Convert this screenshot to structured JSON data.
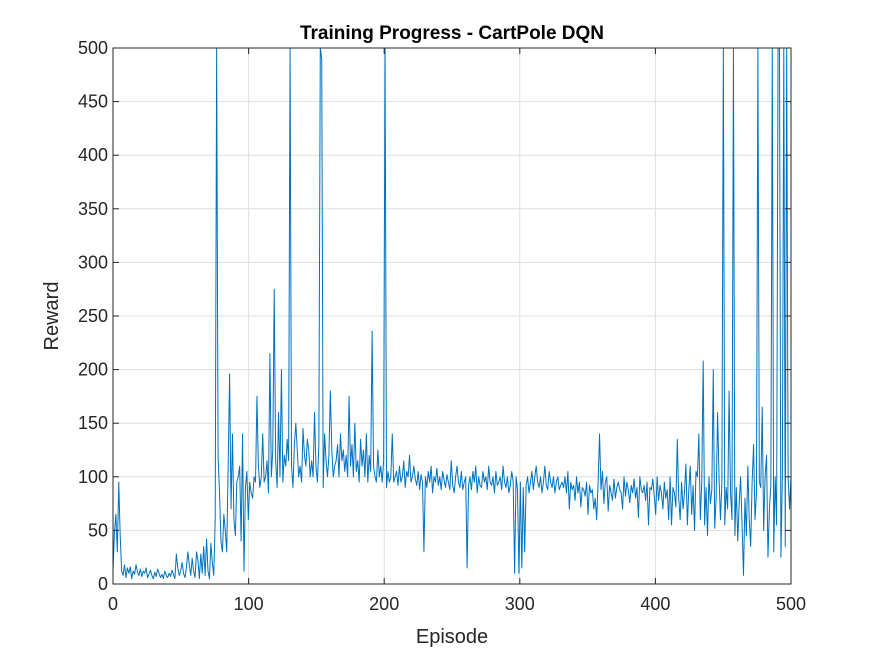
{
  "chart_data": {
    "type": "line",
    "title": "Training Progress - CartPole DQN",
    "xlabel": "Episode",
    "ylabel": "Reward",
    "xlim": [
      0,
      500
    ],
    "ylim": [
      0,
      500
    ],
    "xticks": [
      0,
      100,
      200,
      300,
      400,
      500
    ],
    "yticks": [
      0,
      50,
      100,
      150,
      200,
      250,
      300,
      350,
      400,
      450,
      500
    ],
    "grid": true,
    "legend": null,
    "series": [
      {
        "name": "Reward",
        "color": "#0072BD",
        "y": [
          12,
          48,
          65,
          30,
          95,
          45,
          12,
          8,
          18,
          6,
          15,
          10,
          16,
          5,
          12,
          9,
          18,
          11,
          8,
          14,
          7,
          12,
          10,
          15,
          6,
          9,
          13,
          8,
          5,
          11,
          7,
          14,
          10,
          6,
          9,
          5,
          12,
          8,
          6,
          10,
          7,
          13,
          9,
          5,
          28,
          15,
          8,
          12,
          20,
          10,
          6,
          15,
          30,
          18,
          8,
          24,
          12,
          6,
          30,
          22,
          5,
          28,
          10,
          35,
          8,
          42,
          12,
          5,
          38,
          20,
          8,
          60,
          500,
          120,
          85,
          40,
          30,
          65,
          50,
          30,
          110,
          196,
          70,
          140,
          60,
          45,
          95,
          100,
          110,
          40,
          140,
          12,
          90,
          105,
          60,
          95,
          85,
          80,
          100,
          95,
          175,
          110,
          90,
          100,
          140,
          95,
          100,
          115,
          85,
          215,
          100,
          125,
          275,
          115,
          90,
          160,
          100,
          200,
          95,
          120,
          110,
          135,
          115,
          500,
          110,
          90,
          130,
          150,
          125,
          100,
          110,
          95,
          145,
          120,
          110,
          135,
          125,
          100,
          115,
          100,
          160,
          110,
          95,
          130,
          500,
          490,
          90,
          140,
          115,
          100,
          120,
          180,
          125,
          100,
          110,
          115,
          130,
          100,
          140,
          115,
          125,
          105,
          120,
          100,
          175,
          110,
          130,
          100,
          150,
          105,
          115,
          95,
          135,
          110,
          125,
          100,
          140,
          95,
          120,
          105,
          236,
          110,
          100,
          95,
          125,
          100,
          110,
          95,
          115,
          500,
          90,
          105,
          95,
          100,
          140,
          95,
          100,
          105,
          92,
          110,
          95,
          100,
          115,
          90,
          105,
          100,
          120,
          95,
          100,
          110,
          98,
          92,
          105,
          88,
          102,
          95,
          30,
          100,
          90,
          105,
          95,
          110,
          85,
          100,
          95,
          108,
          92,
          100,
          88,
          105,
          97,
          90,
          102,
          95,
          88,
          115,
          92,
          85,
          100,
          110,
          95,
          90,
          105,
          88,
          95,
          100,
          15,
          92,
          100,
          88,
          105,
          95,
          110,
          85,
          100,
          92,
          90,
          105,
          95,
          100,
          88,
          110,
          95,
          92,
          100,
          85,
          105,
          92,
          95,
          100,
          88,
          110,
          95,
          90,
          100,
          85,
          92,
          105,
          95,
          10,
          100,
          88,
          10,
          95,
          15,
          90,
          30,
          92,
          100,
          85,
          95,
          105,
          88,
          100,
          110,
          95,
          90,
          100,
          85,
          95,
          110,
          92,
          88,
          105,
          95,
          90,
          100,
          85,
          95,
          100,
          88,
          92,
          95,
          90,
          100,
          85,
          105,
          70,
          95,
          88,
          92,
          78,
          100,
          85,
          95,
          72,
          90,
          88,
          82,
          95,
          65,
          92,
          85,
          88,
          70,
          80,
          60,
          95,
          140,
          88,
          105,
          75,
          95,
          100,
          68,
          92,
          85,
          78,
          98,
          80,
          90,
          95,
          88,
          85,
          70,
          100,
          82,
          95,
          88,
          76,
          92,
          85,
          98,
          80,
          90,
          62,
          100,
          88,
          85,
          92,
          78,
          95,
          55,
          90,
          88,
          98,
          82,
          65,
          100,
          78,
          92,
          85,
          70,
          95,
          80,
          88,
          60,
          100,
          55,
          90,
          85,
          72,
          135,
          80,
          60,
          95,
          70,
          85,
          112,
          55,
          88,
          110,
          65,
          92,
          50,
          105,
          100,
          140,
          60,
          95,
          208,
          55,
          90,
          45,
          100,
          75,
          88,
          200,
          52,
          80,
          160,
          100,
          60,
          95,
          500,
          55,
          90,
          70,
          180,
          85,
          60,
          500,
          45,
          90,
          40,
          75,
          100,
          55,
          8,
          80,
          45,
          110,
          60,
          35,
          95,
          130,
          60,
          85,
          500,
          95,
          90,
          165,
          50,
          100,
          120,
          25,
          70,
          92,
          500,
          30,
          100,
          55,
          500,
          500,
          25,
          100,
          500,
          35,
          500,
          100,
          70,
          100
        ]
      }
    ]
  }
}
